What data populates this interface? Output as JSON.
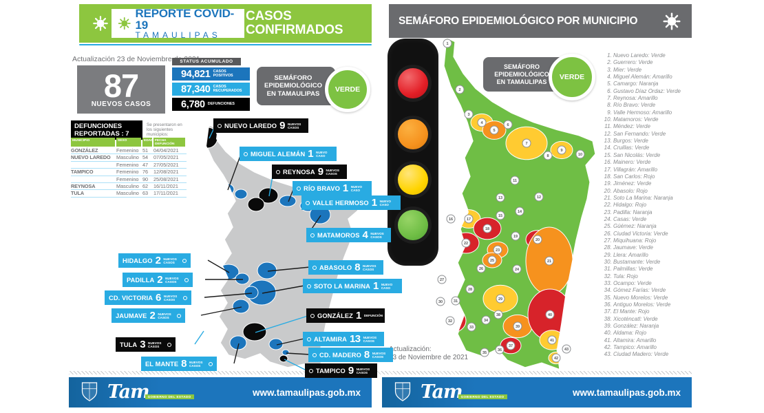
{
  "colors": {
    "header_green": "#8DC63F",
    "blue_dark": "#1C75BC",
    "blue_light": "#29ABE2",
    "badge_gray": "#6A6B6E",
    "footer_blue": "#1C75BC",
    "map_base_gray": "#C9CACB",
    "status": {
      "Verde": "#6FBE45",
      "Amarillo": "#FFCB31",
      "Naranja": "#F6921E",
      "Rojo": "#D7232A"
    },
    "traffic_lights": [
      "#E31E26",
      "#F6921E",
      "#FFD400",
      "#6FBE45"
    ]
  },
  "left": {
    "header": {
      "title_line1": "REPORTE COVID-19",
      "title_line2": "TAMAULIPAS",
      "right_line1": "CASOS",
      "right_line2": "CONFIRMADOS"
    },
    "update_text": "Actualización 23 de Noviembre de 2021",
    "new_cases": {
      "value": "87",
      "label": "NUEVOS CASOS"
    },
    "status_header": "STATUS ACUMULADO",
    "stats": {
      "positivos": {
        "value": "94,821",
        "label": "CASOS POSITIVOS"
      },
      "recuperados": {
        "value": "87,340",
        "label": "CASOS RECUPERADOS"
      },
      "defunciones": {
        "value": "6,780",
        "label": "DEFUNCIONES"
      }
    },
    "badge": {
      "line1": "SEMÁFORO",
      "line2": "EPIDEMIOLÓGICO",
      "line3": "EN TAMAULIPAS",
      "status": "VERDE"
    },
    "deaths": {
      "title_line1": "DEFUNCIONES",
      "title_line2": "REPORTADAS : 7",
      "note": "Se presentaron en los siguientes municipios:",
      "columns": [
        "MUNICIPIO",
        "SEXO",
        "EDAD",
        "FECHA DEFUNCIÓN"
      ],
      "rows": [
        [
          "GONZÁLEZ",
          "Femenino",
          "51",
          "04/04/2021"
        ],
        [
          "NUEVO LAREDO",
          "Masculino",
          "54",
          "07/05/2021"
        ],
        [
          "",
          "Femenino",
          "47",
          "27/05/2021"
        ],
        [
          "TAMPICO",
          "Femenino",
          "76",
          "12/08/2021"
        ],
        [
          "",
          "Femenino",
          "90",
          "25/08/2021"
        ],
        [
          "REYNOSA",
          "Masculino",
          "62",
          "16/11/2021"
        ],
        [
          "TULA",
          "Masculino",
          "63",
          "17/11/2021"
        ]
      ]
    },
    "callouts": [
      {
        "name": "NUEVO LAREDO",
        "count": "9",
        "unit": "NUEVOS CASOS"
      },
      {
        "name": "MIGUEL ALEMÁN",
        "count": "1",
        "unit": "NUEVO CASO"
      },
      {
        "name": "REYNOSA",
        "count": "9",
        "unit": "NUEVOS CASOS"
      },
      {
        "name": "RÍO BRAVO",
        "count": "1",
        "unit": "NUEVO CASO"
      },
      {
        "name": "VALLE HERMOSO",
        "count": "1",
        "unit": "NUEVO CASO"
      },
      {
        "name": "MATAMOROS",
        "count": "4",
        "unit": "NUEVOS CASOS"
      },
      {
        "name": "ABASOLO",
        "count": "8",
        "unit": "NUEVOS CASOS"
      },
      {
        "name": "SOTO LA MARINA",
        "count": "1",
        "unit": "NUEVO CASO"
      },
      {
        "name": "GONZÁLEZ",
        "count": "1",
        "unit": "DEFUNCIÓN"
      },
      {
        "name": "ALTAMIRA",
        "count": "13",
        "unit": "NUEVOS CASOS"
      },
      {
        "name": "CD. MADERO",
        "count": "8",
        "unit": "NUEVOS CASOS"
      },
      {
        "name": "TAMPICO",
        "count": "9",
        "unit": "NUEVOS CASOS"
      },
      {
        "name": "HIDALGO",
        "count": "2",
        "unit": "NUEVOS CASOS"
      },
      {
        "name": "PADILLA",
        "count": "2",
        "unit": "NUEVOS CASOS"
      },
      {
        "name": "CD. VICTORIA",
        "count": "6",
        "unit": "NUEVOS CASOS"
      },
      {
        "name": "JAUMAVE",
        "count": "2",
        "unit": "NUEVOS CASOS"
      },
      {
        "name": "TULA",
        "count": "3",
        "unit": "NUEVOS CASOS"
      },
      {
        "name": "EL MANTE",
        "count": "8",
        "unit": "NUEVOS CASOS"
      }
    ]
  },
  "right": {
    "header_title": "SEMÁFORO EPIDEMIOLÓGICO POR MUNICIPIO",
    "badge": {
      "line1": "SEMÁFORO",
      "line2": "EPIDEMIOLÓGICO",
      "line3": "EN TAMAULIPAS",
      "status": "VERDE"
    },
    "update_line1": "Actualización:",
    "update_line2": "23 de Noviembre de 2021",
    "municipalities": [
      "Nuevo Laredo: Verde",
      "Guerrero: Verde",
      "Mier: Verde",
      "Miguel Alemán: Amarillo",
      "Camargo: Naranja",
      "Gustavo Díaz Ordaz: Verde",
      "Reynosa: Amarillo",
      "Río Bravo: Verde",
      "Valle Hermoso: Amarillo",
      "Matamoros: Verde",
      "Méndez: Verde",
      "San Fernando: Verde",
      "Burgos: Verde",
      "Cruillas: Verde",
      "San Nicolás: Verde",
      "Mainero: Verde",
      "Villagrán: Amarillo",
      "San Carlos: Rojo",
      "Jiménez: Verde",
      "Abasolo: Rojo",
      "Soto La Marina: Naranja",
      "Hidalgo: Rojo",
      "Padilla: Naranja",
      "Casas: Verde",
      "Güémez: Naranja",
      "Ciudad Victoria: Verde",
      "Miquihuana: Rojo",
      "Jaumave: Verde",
      "Llera: Amarillo",
      "Bustamante: Verde",
      "Palmillas: Verde",
      "Tula: Rojo",
      "Ocampo: Verde",
      "Gómez Farías: Verde",
      "Nuevo Morelos: Verde",
      "Antiguo Morelos: Verde",
      "El Mante: Rojo",
      "Xicoténcatl: Verde",
      "González: Naranja",
      "Aldama: Rojo",
      "Altamira: Amarillo",
      "Tampico: Amarillo",
      "Ciudad Madero: Verde"
    ]
  },
  "footer": {
    "url": "www.tamaulipas.gob.mx",
    "logo_text": "Tam",
    "logo_sub": "GOBIERNO DEL ESTADO"
  }
}
